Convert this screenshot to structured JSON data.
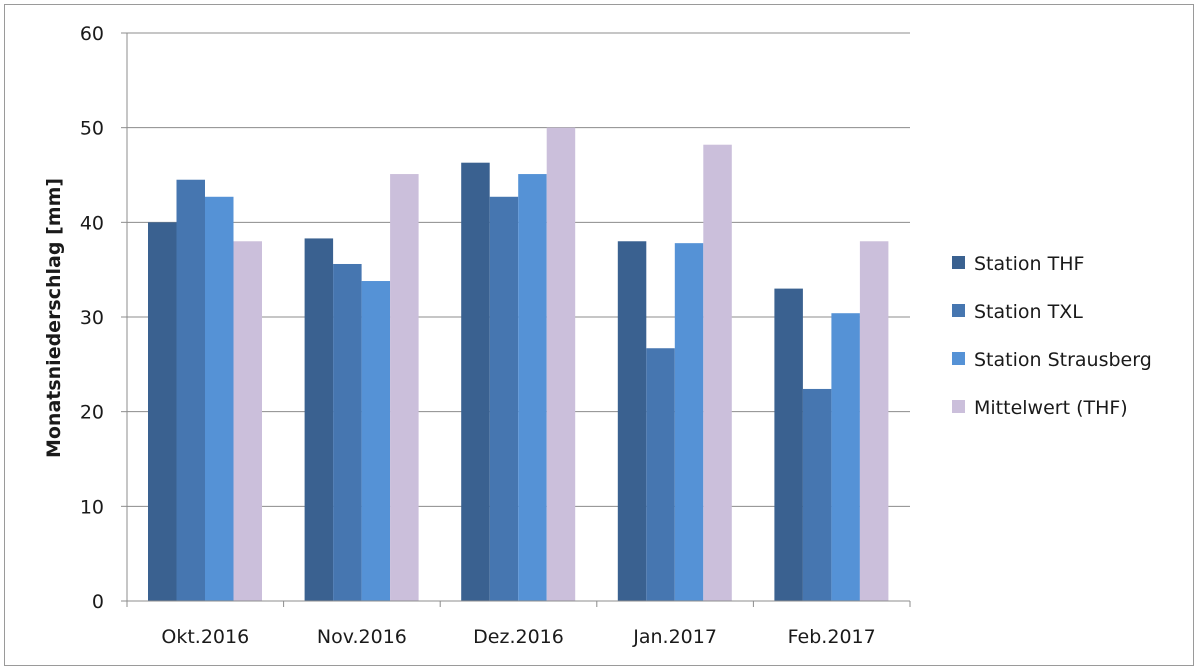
{
  "chart_data": {
    "type": "bar",
    "title": "",
    "xlabel": "",
    "ylabel": "Monatsniederschlag [mm]",
    "ylim": [
      0,
      60
    ],
    "yticks": [
      0,
      10,
      20,
      30,
      40,
      50,
      60
    ],
    "grid": true,
    "legend_position": "right",
    "categories": [
      "Okt.2016",
      "Nov.2016",
      "Dez.2016",
      "Jan.2017",
      "Feb.2017"
    ],
    "series": [
      {
        "name": "Station THF",
        "color": "#3a6190",
        "values": [
          40,
          38.3,
          46.3,
          38,
          33
        ]
      },
      {
        "name": "Station TXL",
        "color": "#4676b0",
        "values": [
          44.5,
          35.6,
          42.7,
          26.7,
          22.4
        ]
      },
      {
        "name": "Station Strausberg",
        "color": "#5592d6",
        "values": [
          42.7,
          33.8,
          45.1,
          37.8,
          30.4
        ]
      },
      {
        "name": "Mittelwert (THF)",
        "color": "#cbbfdb",
        "values": [
          38,
          45.1,
          50,
          48.2,
          38
        ]
      }
    ]
  }
}
